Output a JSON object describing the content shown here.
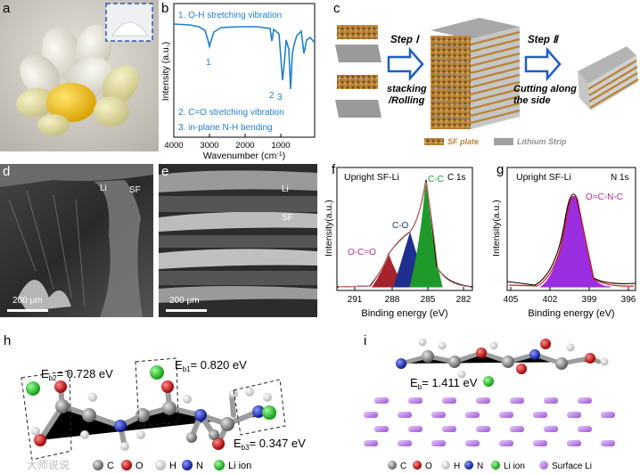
{
  "panel_labels": {
    "a": "a",
    "b": "b",
    "c": "c",
    "d": "d",
    "e": "e",
    "f": "f",
    "g": "g",
    "h": "h",
    "i": "i"
  },
  "panel_b": {
    "ylabel": "Intensity (a.u.)",
    "xlabel": "Wavenumber (cm",
    "xlabel_sup": "-1",
    "xlabel_end": ")",
    "ticks": [
      "4000",
      "3000",
      "2000",
      "1000"
    ],
    "legend_top": "1. O-H stretching vibration",
    "legend_mid": "2. C=O stretching vibration",
    "legend_bot": "3. in-plane N-H bending",
    "peak1": "1",
    "peak2": "2",
    "peak3": "3"
  },
  "panel_c": {
    "step1": "Step Ⅰ",
    "step1_desc1": "stacking",
    "step1_desc2": "/Rolling",
    "step2": "Step Ⅱ",
    "step2_desc1": "Cutting along",
    "step2_desc2": "the side",
    "legend_sf": "SF plate",
    "legend_li": "Lithium Strip"
  },
  "panel_d": {
    "li": "Li",
    "sf": "SF",
    "scale": "200 μm"
  },
  "panel_e": {
    "li": "Li",
    "sf": "SF",
    "scale": "200 μm"
  },
  "panel_f": {
    "title": "Upright SF-Li",
    "element": "C 1s",
    "ylabel": "Intensity(a.u.)",
    "xlabel": "Binding energy (eV)",
    "ticks": [
      "291",
      "288",
      "285",
      "282"
    ],
    "peak_occ": "O-C=O",
    "peak_co": "C-O",
    "peak_cc": "C-C"
  },
  "panel_g": {
    "title": "Upright SF-Li",
    "element": "N 1s",
    "ylabel": "Intensity(a.u.)",
    "xlabel": "Binding energy (eV)",
    "ticks": [
      "405",
      "402",
      "399",
      "396"
    ],
    "peak": "O=C-N-C"
  },
  "panel_h": {
    "eb2_label": "E",
    "eb2_sub": "b2",
    "eb2_val": "= 0.728 eV",
    "eb1_label": "E",
    "eb1_sub": "b1",
    "eb1_val": "= 0.820 eV",
    "eb3_label": "E",
    "eb3_sub": "b3",
    "eb3_val": "= 0.347 eV",
    "legend": [
      "C",
      "O",
      "H",
      "N",
      "Li ion"
    ]
  },
  "panel_i": {
    "eb_label": "E",
    "eb_sub": "b",
    "eb_val": "= 1.411 eV",
    "legend": [
      "C",
      "O",
      "H",
      "N",
      "Li ion",
      "Surface Li"
    ]
  },
  "watermark": "大师说说",
  "colors": {
    "blue": "#1e7fd0",
    "c_atom": "#8c8c8c",
    "o_atom": "#d71e1e",
    "n_atom": "#1f2fbf",
    "li_atom": "#22c522",
    "surf_li": "#b77ee0"
  }
}
